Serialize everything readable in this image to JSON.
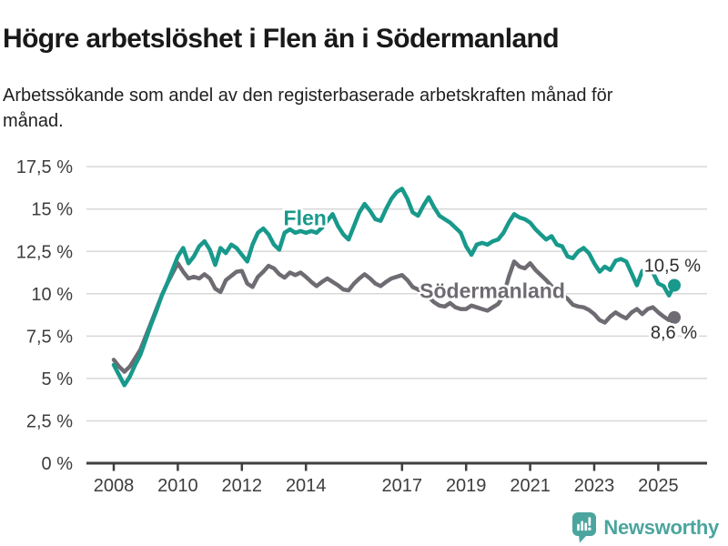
{
  "header": {
    "title": "Högre arbetslöshet i Flen än i Södermanland",
    "subtitle": "Arbetssökande som andel av den registerbaserade arbetskraften månad för månad."
  },
  "branding": {
    "name": "Newsworthy",
    "logo_icon": "bar-chart-speech-bubble-icon",
    "color": "#4ba59e"
  },
  "colors": {
    "flen": "#18998b",
    "sodermanland": "#6f6b72",
    "grid": "#d8d8d8",
    "axis": "#3f3f3f",
    "tick_label": "#3d3d3d",
    "value_label": "#2e2e2e",
    "background": "#ffffff"
  },
  "chart_data": {
    "type": "line",
    "title": "Högre arbetslöshet i Flen än i Södermanland",
    "subtitle": "Arbetssökande som andel av den registerbaserade arbetskraften månad för månad.",
    "grid": "horizontal",
    "legend_position": "inline-labels",
    "x_start": 2008.0,
    "x_step": 0.16667,
    "x_axis": {
      "range": [
        2007.2,
        2026.5
      ],
      "ticks": [
        {
          "v": 2008,
          "label": "2008"
        },
        {
          "v": 2010,
          "label": "2010"
        },
        {
          "v": 2012,
          "label": "2012"
        },
        {
          "v": 2014,
          "label": "2014"
        },
        {
          "v": 2017,
          "label": "2017"
        },
        {
          "v": 2019,
          "label": "2019"
        },
        {
          "v": 2021,
          "label": "2021"
        },
        {
          "v": 2023,
          "label": "2023"
        },
        {
          "v": 2025,
          "label": "2025"
        }
      ]
    },
    "y_axis": {
      "unit": "%",
      "range": [
        0,
        17.5
      ],
      "ticks": [
        {
          "v": 0,
          "label": "0 %"
        },
        {
          "v": 2.5,
          "label": "2,5 %"
        },
        {
          "v": 5,
          "label": "5 %"
        },
        {
          "v": 7.5,
          "label": "7,5 %"
        },
        {
          "v": 10,
          "label": "10 %"
        },
        {
          "v": 12.5,
          "label": "12,5 %"
        },
        {
          "v": 15,
          "label": "15 %"
        },
        {
          "v": 17.5,
          "label": "17,5 %"
        }
      ]
    },
    "series": [
      {
        "name": "Södermanland",
        "color": "#6f6b72",
        "end_value_label": "8,6 %",
        "label_anchor": {
          "x": 2017.55,
          "y": 9.75
        },
        "end_label_offset": {
          "dx": 25,
          "dy": 23
        },
        "values": [
          6.1,
          5.7,
          5.4,
          5.7,
          6.2,
          6.7,
          7.5,
          8.3,
          9.1,
          9.9,
          10.6,
          11.2,
          11.8,
          11.3,
          10.9,
          11.0,
          10.9,
          11.15,
          10.9,
          10.3,
          10.1,
          10.8,
          11.05,
          11.3,
          11.35,
          10.6,
          10.4,
          11.0,
          11.3,
          11.65,
          11.5,
          11.15,
          10.95,
          11.25,
          11.1,
          11.25,
          11.0,
          10.7,
          10.45,
          10.7,
          10.9,
          10.7,
          10.5,
          10.25,
          10.2,
          10.6,
          10.9,
          11.15,
          10.9,
          10.6,
          10.45,
          10.7,
          10.9,
          11.0,
          11.1,
          10.8,
          10.4,
          10.25,
          10.0,
          9.8,
          9.5,
          9.3,
          9.25,
          9.45,
          9.2,
          9.1,
          9.1,
          9.3,
          9.2,
          9.1,
          9.0,
          9.2,
          9.4,
          9.9,
          11.0,
          11.9,
          11.6,
          11.5,
          11.8,
          11.4,
          11.1,
          10.8,
          10.45,
          10.1,
          9.95,
          9.7,
          9.35,
          9.25,
          9.2,
          9.05,
          8.8,
          8.45,
          8.3,
          8.65,
          8.9,
          8.7,
          8.55,
          8.9,
          9.1,
          8.8,
          9.1,
          9.2,
          8.9,
          8.65,
          8.45,
          8.6
        ]
      },
      {
        "name": "Flen",
        "color": "#18998b",
        "end_value_label": "10,5 %",
        "label_anchor": {
          "x": 2013.3,
          "y": 14.05
        },
        "end_label_offset": {
          "dx": 29,
          "dy": -15
        },
        "values": [
          5.8,
          5.2,
          4.6,
          5.1,
          5.8,
          6.4,
          7.3,
          8.2,
          9.0,
          9.9,
          10.6,
          11.4,
          12.2,
          12.7,
          11.8,
          12.2,
          12.8,
          13.1,
          12.6,
          11.7,
          12.7,
          12.4,
          12.9,
          12.7,
          12.3,
          11.9,
          12.9,
          13.6,
          13.85,
          13.5,
          12.9,
          12.6,
          13.6,
          13.8,
          13.6,
          13.7,
          13.6,
          13.7,
          13.6,
          13.9,
          14.3,
          14.7,
          14.0,
          13.5,
          13.2,
          14.0,
          14.8,
          15.3,
          14.9,
          14.4,
          14.3,
          15.0,
          15.6,
          16.0,
          16.2,
          15.6,
          14.8,
          14.6,
          15.2,
          15.7,
          15.1,
          14.6,
          14.4,
          14.2,
          13.9,
          13.6,
          12.8,
          12.3,
          12.9,
          13.0,
          12.9,
          13.1,
          13.2,
          13.6,
          14.2,
          14.7,
          14.5,
          14.4,
          14.2,
          13.8,
          13.5,
          13.2,
          13.4,
          12.9,
          12.8,
          12.2,
          12.1,
          12.5,
          12.7,
          12.4,
          11.8,
          11.3,
          11.6,
          11.4,
          11.95,
          12.05,
          11.9,
          11.2,
          10.5,
          11.35,
          11.4,
          11.25,
          10.6,
          10.45,
          9.9,
          10.5
        ]
      }
    ]
  }
}
